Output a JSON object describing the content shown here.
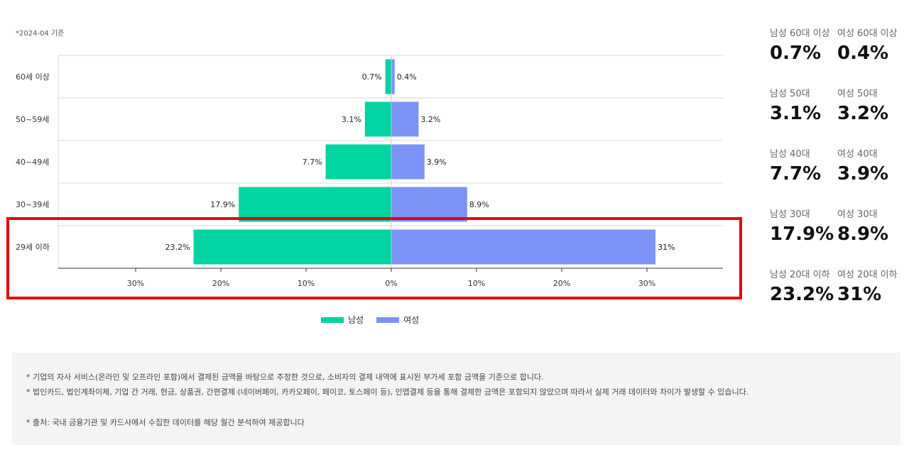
{
  "as_of": "*2024-04 기준",
  "chart_data": {
    "type": "bar",
    "orientation": "horizontal",
    "layout": "population-pyramid",
    "categories": [
      "60세 이상",
      "50~59세",
      "40~49세",
      "30~39세",
      "29세 이하"
    ],
    "series": [
      {
        "name": "남성",
        "values": [
          0.7,
          3.1,
          7.7,
          17.9,
          23.2
        ],
        "labels": [
          "0.7%",
          "3.1%",
          "7.7%",
          "17.9%",
          "23.2%"
        ],
        "color": "#00d4a0",
        "direction": "left"
      },
      {
        "name": "여성",
        "values": [
          0.4,
          3.2,
          3.9,
          8.9,
          31
        ],
        "labels": [
          "0.4%",
          "3.2%",
          "3.9%",
          "8.9%",
          "31%"
        ],
        "color": "#7b93f7",
        "direction": "right"
      }
    ],
    "xticks": [
      "30%",
      "20%",
      "10%",
      "0%",
      "10%",
      "20%",
      "30%"
    ],
    "xlim": [
      -39,
      39
    ],
    "grid": true,
    "legend": "bottom-center",
    "highlighted_category": "29세 이하",
    "highlight_color": "#e8000b"
  },
  "summary": [
    [
      {
        "label": "남성 60대 이상",
        "value": "0.7%"
      },
      {
        "label": "여성 60대 이상",
        "value": "0.4%"
      }
    ],
    [
      {
        "label": "남성 50대",
        "value": "3.1%"
      },
      {
        "label": "여성 50대",
        "value": "3.2%"
      }
    ],
    [
      {
        "label": "남성 40대",
        "value": "7.7%"
      },
      {
        "label": "여성 40대",
        "value": "3.9%"
      }
    ],
    [
      {
        "label": "남성 30대",
        "value": "17.9%"
      },
      {
        "label": "여성 30대",
        "value": "8.9%"
      }
    ],
    [
      {
        "label": "남성 20대 이하",
        "value": "23.2%"
      },
      {
        "label": "여성 20대 이하",
        "value": "31%"
      }
    ]
  ],
  "notes": [
    "* 기업의 자사 서비스(온라인 및 오프라인 포함)에서 결제된 금액을 바탕으로 추정한 것으로, 소비자의 결제 내역에 표시된 부가세 포함 금액을 기준으로 합니다.",
    "* 법인카드, 법인계좌이체, 기업 간 거래, 현금, 상품권, 간편결제 (네이버페이, 카카오페이, 페이코, 토스페이 등), 인앱결제 등을 통해 결제한 금액은 포함되지 않았으며 따라서 실제 거래 데이터와 차이가 발생할 수 있습니다.",
    "* 출처:   국내 금융기관 및 카드사에서 수집한 데이터를 해당 월간 분석하여 제공합니다"
  ]
}
